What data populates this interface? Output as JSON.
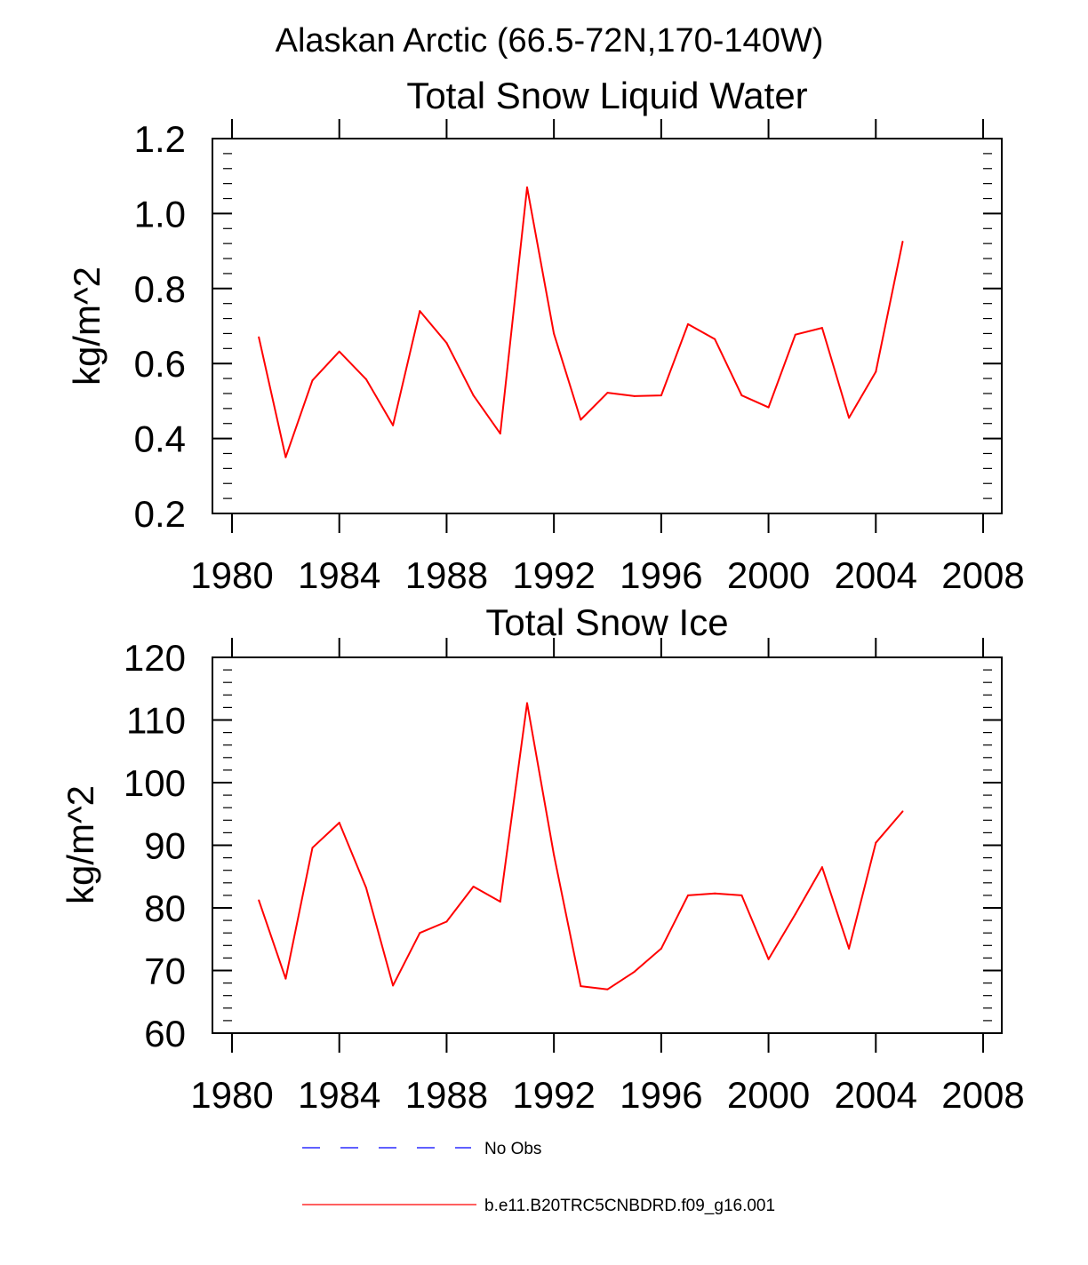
{
  "main_title": "Alaskan Arctic (66.5-72N,170-140W)",
  "chart_data": [
    {
      "type": "line",
      "title": "Total Snow Liquid Water",
      "xlabel": "",
      "ylabel": "kg/m^2",
      "xlim": [
        1980,
        2008
      ],
      "ylim": [
        0.2,
        1.2
      ],
      "x_ticks": [
        "1980",
        "1984",
        "1988",
        "1992",
        "1996",
        "2000",
        "2004",
        "2008"
      ],
      "y_ticks": [
        "0.2",
        "0.4",
        "0.6",
        "0.8",
        "1.0",
        "1.2"
      ],
      "x_tick_values": [
        1980,
        1984,
        1988,
        1992,
        1996,
        2000,
        2004,
        2008
      ],
      "y_tick_values": [
        0.2,
        0.4,
        0.6,
        0.8,
        1.0,
        1.2
      ],
      "y_minor_step": 0.04,
      "series": [
        {
          "name": "b.e11.B20TRC5CNBDRD.f09_g16.001",
          "color": "#ff0000",
          "x": [
            1981,
            1982,
            1983,
            1984,
            1985,
            1986,
            1987,
            1988,
            1989,
            1990,
            1991,
            1992,
            1993,
            1994,
            1995,
            1996,
            1997,
            1998,
            1999,
            2000,
            2001,
            2002,
            2003,
            2004,
            2005
          ],
          "values": [
            0.67,
            0.35,
            0.555,
            0.632,
            0.558,
            0.435,
            0.74,
            0.655,
            0.515,
            0.413,
            1.07,
            0.68,
            0.45,
            0.522,
            0.513,
            0.515,
            0.705,
            0.665,
            0.515,
            0.483,
            0.677,
            0.695,
            0.455,
            0.578,
            0.925
          ]
        }
      ]
    },
    {
      "type": "line",
      "title": "Total Snow Ice",
      "xlabel": "",
      "ylabel": "kg/m^2",
      "xlim": [
        1980,
        2008
      ],
      "ylim": [
        60,
        120
      ],
      "x_ticks": [
        "1980",
        "1984",
        "1988",
        "1992",
        "1996",
        "2000",
        "2004",
        "2008"
      ],
      "y_ticks": [
        "60",
        "70",
        "80",
        "90",
        "100",
        "110",
        "120"
      ],
      "x_tick_values": [
        1980,
        1984,
        1988,
        1992,
        1996,
        2000,
        2004,
        2008
      ],
      "y_tick_values": [
        60,
        70,
        80,
        90,
        100,
        110,
        120
      ],
      "y_minor_step": 2,
      "series": [
        {
          "name": "b.e11.B20TRC5CNBDRD.f09_g16.001",
          "color": "#ff0000",
          "x": [
            1981,
            1982,
            1983,
            1984,
            1985,
            1986,
            1987,
            1988,
            1989,
            1990,
            1991,
            1992,
            1993,
            1994,
            1995,
            1996,
            1997,
            1998,
            1999,
            2000,
            2001,
            2002,
            2003,
            2004,
            2005
          ],
          "values": [
            81.2,
            68.7,
            89.6,
            93.6,
            83.2,
            67.6,
            76.0,
            77.8,
            83.4,
            81.0,
            112.7,
            88.5,
            67.5,
            67.0,
            69.8,
            73.5,
            82.0,
            82.3,
            82.0,
            71.8,
            79.0,
            86.5,
            73.5,
            90.4,
            95.4
          ]
        }
      ]
    }
  ],
  "legend": {
    "placement": "bottom",
    "items": [
      {
        "label": "No Obs",
        "color": "#0000ff",
        "style": "dashed"
      },
      {
        "label": "b.e11.B20TRC5CNBDRD.f09_g16.001",
        "color": "#ff0000",
        "style": "solid"
      }
    ]
  }
}
